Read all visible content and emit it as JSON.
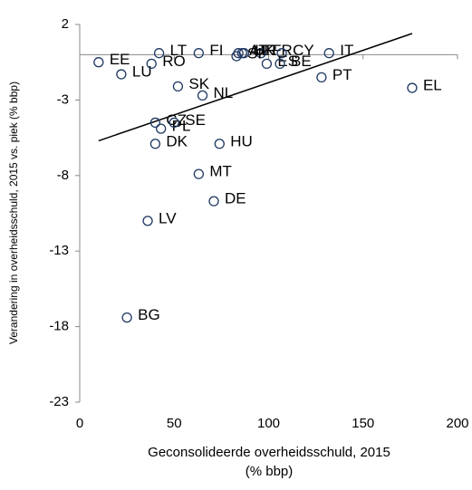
{
  "chart_data": {
    "type": "scatter",
    "y_label": "Verandering in overheidsschuld, 2015 vs. piek (% bbp)",
    "x_label_lines": [
      "Geconsolideerde overheidsschuld, 2015",
      "(% bbp)"
    ],
    "xlim": [
      0,
      200
    ],
    "xticks": [
      0,
      50,
      100,
      150,
      200
    ],
    "ylim": [
      -23,
      2
    ],
    "yticks": [
      2,
      -3,
      -8,
      -13,
      -18,
      -23
    ],
    "series": [
      {
        "color": "#1f3864",
        "labels": [
          "EE",
          "LU",
          "LT",
          "FI",
          "AT",
          "UK",
          "FR",
          "CY",
          "IT",
          "SI",
          "HR",
          "ES",
          "BE",
          "PT",
          "EL",
          "RO",
          "SK",
          "NL",
          "CZ",
          "PL",
          "SE",
          "DK",
          "HU",
          "MT",
          "DE",
          "LV",
          "BG"
        ],
        "x": [
          10,
          22,
          42,
          63,
          84,
          86,
          96,
          107,
          132,
          83,
          87,
          99,
          106,
          128,
          176,
          38,
          52,
          65,
          40,
          43,
          50,
          40,
          74,
          63,
          71,
          36,
          25
        ],
        "values": [
          -0.5,
          -1.3,
          0.1,
          0.1,
          0.1,
          0.1,
          0.1,
          0.1,
          0.1,
          -0.1,
          0.1,
          -0.6,
          -0.6,
          -1.5,
          -2.2,
          -0.6,
          -2.1,
          -2.7,
          -4.5,
          -4.9,
          -4.5,
          -5.9,
          -5.9,
          -7.9,
          -9.7,
          -11.0,
          -17.4
        ]
      }
    ],
    "trendline": {
      "color": "#000000",
      "x": [
        10,
        176
      ],
      "values": [
        -5.7,
        1.4
      ]
    }
  }
}
